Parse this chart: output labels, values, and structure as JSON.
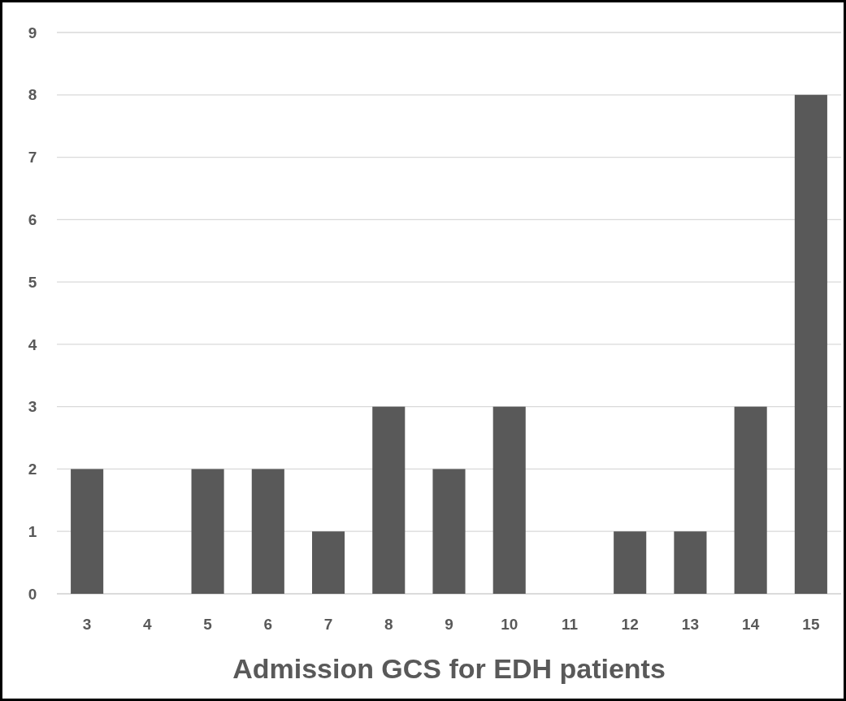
{
  "chart_data": {
    "type": "bar",
    "xlabel": "Admission GCS for EDH patients",
    "categories": [
      "3",
      "4",
      "5",
      "6",
      "7",
      "8",
      "9",
      "10",
      "11",
      "12",
      "13",
      "14",
      "15"
    ],
    "values": [
      2,
      0,
      2,
      2,
      1,
      3,
      2,
      3,
      0,
      1,
      1,
      3,
      8
    ],
    "color": "#595959",
    "ylim": [
      0,
      9
    ],
    "yticks": [
      0,
      1,
      2,
      3,
      4,
      5,
      6,
      7,
      8,
      9
    ],
    "grid": "y"
  }
}
